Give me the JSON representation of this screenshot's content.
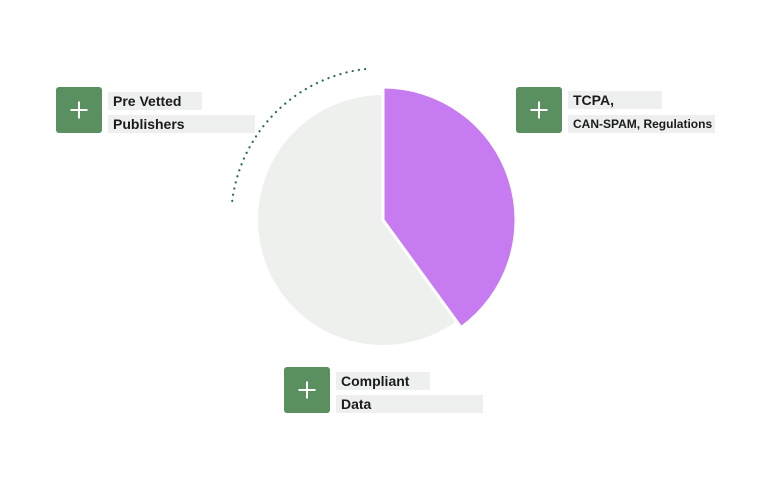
{
  "colors": {
    "accent_green": "#5a8f60",
    "pie_highlight": "#c77bf1",
    "pie_base": "#eef0ee",
    "label_background": "#eef0ef",
    "dotted_arc": "#2f6a60"
  },
  "pie": {
    "slices": [
      {
        "role": "highlight",
        "fraction": 0.4,
        "color": "#c77bf1"
      },
      {
        "role": "remainder",
        "fraction": 0.6,
        "color": "#eef0ee"
      }
    ]
  },
  "callouts": [
    {
      "icon": "plus-icon",
      "line1": "Pre Vetted",
      "line2": "Publishers"
    },
    {
      "icon": "plus-icon",
      "line1": "TCPA,",
      "line2": "CAN-SPAM, Regulations"
    },
    {
      "icon": "plus-icon",
      "line1": "Compliant",
      "line2": "Data"
    }
  ]
}
